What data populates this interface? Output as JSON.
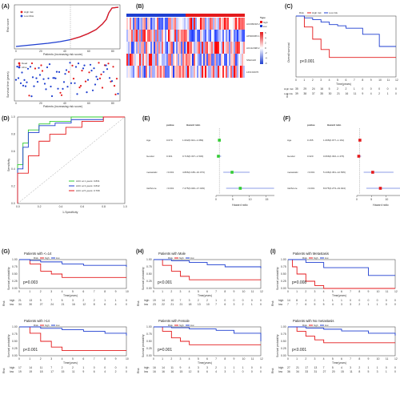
{
  "panel_labels": [
    "(A)",
    "(B)",
    "(C)",
    "(D)",
    "(E)",
    "(F)",
    "(G)",
    "(H)",
    "(I)"
  ],
  "colors": {
    "high": "#e41a1c",
    "low": "#1f3fd0",
    "green": "#33cc33",
    "gray": "#aaaaaa"
  },
  "A": {
    "legend": [
      "High risk",
      "Low Risk"
    ],
    "ylabel1": "Risk score",
    "xlabel": "Patients (increasing risk score)",
    "legend2": [
      "Dead",
      "Alive"
    ],
    "ylabel2": "Survival time (years)",
    "xticks": [
      "0",
      "20",
      "40",
      "60",
      "80"
    ],
    "yticks1": [
      "0",
      "5",
      "10",
      "15",
      "20",
      "25",
      "30"
    ],
    "yticks2": [
      "0",
      "2",
      "4",
      "6",
      "8",
      "10",
      "12"
    ]
  },
  "B": {
    "legend_title": "Type",
    "legend": [
      "high",
      "low"
    ],
    "genes": [
      "AC009318.2",
      "AP000365.1",
      "AC112498.2",
      "SNHG20",
      "LINC01976"
    ],
    "scale": [
      "6",
      "4",
      "2",
      "0",
      "-2",
      "-4",
      "-6"
    ]
  },
  "C": {
    "legend_title": "Risk",
    "legend": [
      "High risk",
      "Low risk"
    ],
    "ylabel": "Overall survival",
    "xlabel": "Time(years)",
    "pvalue": "p<0.001",
    "risk_table_title": "Risk",
    "risk_rows": [
      {
        "label": "High risk",
        "values": [
          "35",
          "29",
          "24",
          "16",
          "5",
          "2",
          "2",
          "1",
          "0",
          "0",
          "0",
          "0",
          "0"
        ]
      },
      {
        "label": "Low risk",
        "values": [
          "39",
          "38",
          "37",
          "35",
          "30",
          "21",
          "16",
          "11",
          "9",
          "4",
          "2",
          "1",
          "0"
        ]
      }
    ],
    "xticks": [
      "0",
      "1",
      "2",
      "3",
      "4",
      "5",
      "6",
      "7",
      "8",
      "9",
      "10",
      "11",
      "12"
    ],
    "yticks": [
      "0.0",
      "0.2",
      "0.4",
      "0.6",
      "0.8",
      "1.0"
    ]
  },
  "D": {
    "ylabel": "Sensitivity",
    "xlabel": "1-Specificity",
    "ticks": [
      "0.0",
      "0.2",
      "0.4",
      "0.6",
      "0.8",
      "1.0"
    ],
    "legend": [
      "AUC at 1 years: 0.831",
      "AUC at 3 years: 0.842",
      "AUC at 5 years: 0.768"
    ]
  },
  "E": {
    "col_headers": [
      "pvalue",
      "Hazard ratio"
    ],
    "rows": [
      {
        "name": "Age",
        "p": "0.670",
        "hr": "1.002(0.921~1.089)",
        "est": 1.002
      },
      {
        "name": "Gender",
        "p": "0.301",
        "hr": "0.716(0.337~1.530)",
        "est": 0.716
      },
      {
        "name": "metastatic",
        "p": "<0.001",
        "hr": "4.806(2.186~10.073)",
        "est": 4.806
      },
      {
        "name": "riskScore",
        "p": "<0.001",
        "hr": "7.275(3.040~17.409)",
        "est": 7.275
      }
    ],
    "xlabel": "Hazard ratio",
    "xticks": [
      "0",
      "5",
      "10",
      "15"
    ]
  },
  "F": {
    "col_headers": [
      "pvalue",
      "Hazard ratio"
    ],
    "rows": [
      {
        "name": "Age",
        "p": "0.155",
        "hr": "1.065(0.977~1.161)",
        "est": 1.065
      },
      {
        "name": "Gender",
        "p": "0.320",
        "hr": "0.666(0.302~1.476)",
        "est": 0.666
      },
      {
        "name": "metastatic",
        "p": "<0.001",
        "hr": "5.446(2.361~12.565)",
        "est": 5.446
      },
      {
        "name": "riskScore",
        "p": "<0.001",
        "hr": "8.075(3.273~19.924)",
        "est": 8.075
      }
    ],
    "xlabel": "Hazard ratio",
    "xticks": [
      "0",
      "5",
      "10",
      "15"
    ]
  },
  "km_common": {
    "legend_title": "Risk",
    "legend": [
      "high",
      "low"
    ],
    "ylabel": "Survival probability",
    "xlabel": "Time(years)",
    "risk_label": "Risk",
    "yticks": [
      "0.00",
      "0.25",
      "0.50",
      "0.75",
      "1.00"
    ]
  },
  "subgroups": [
    {
      "id": "G1",
      "title": "Patients with <=14",
      "pvalue": "p=0.003",
      "xmax": 10,
      "risk_high": [
        "21",
        "13",
        "9",
        "7",
        "5",
        "3",
        "2",
        "2",
        "1",
        "1",
        "0"
      ],
      "risk_low": [
        "34",
        "30",
        "27",
        "24",
        "21",
        "16",
        "12",
        "8",
        "6",
        "4",
        "0"
      ]
    },
    {
      "id": "G2",
      "title": "Patients with >14",
      "pvalue": "p<0.001",
      "xmax": 10,
      "risk_high": [
        "17",
        "14",
        "11",
        "7",
        "2",
        "2",
        "1",
        "0",
        "0",
        "0",
        "0"
      ],
      "risk_low": [
        "19",
        "19",
        "18",
        "17",
        "15",
        "11",
        "9",
        "6",
        "4",
        "2",
        "0"
      ]
    },
    {
      "id": "H1",
      "title": "Patients with Male",
      "pvalue": "p<0.001",
      "xmax": 12,
      "risk_high": [
        "19",
        "14",
        "10",
        "7",
        "3",
        "2",
        "2",
        "1",
        "0",
        "0",
        "0",
        "0",
        "0"
      ],
      "risk_low": [
        "23",
        "22",
        "21",
        "21",
        "18",
        "13",
        "10",
        "7",
        "6",
        "3",
        "2",
        "1",
        "0"
      ]
    },
    {
      "id": "H2",
      "title": "Patients with Female",
      "pvalue": "p=0.001",
      "xmax": 12,
      "risk_high": [
        "16",
        "14",
        "11",
        "9",
        "4",
        "3",
        "3",
        "2",
        "1",
        "1",
        "1",
        "0",
        "0"
      ],
      "risk_low": [
        "16",
        "16",
        "16",
        "15",
        "12",
        "8",
        "6",
        "4",
        "3",
        "1",
        "0",
        "0",
        "0"
      ]
    },
    {
      "id": "I1",
      "title": "Patients with Metastasis",
      "pvalue": "p=0.008",
      "xmax": 12,
      "risk_high": [
        "14",
        "8",
        "4",
        "2",
        "1",
        "1",
        "1",
        "0",
        "0",
        "0",
        "0",
        "0",
        "0"
      ],
      "risk_low": [
        "7",
        "7",
        "6",
        "5",
        "5",
        "4",
        "3",
        "3",
        "2",
        "1",
        "1",
        "0",
        "0"
      ]
    },
    {
      "id": "I2",
      "title": "Patients with No metastasis",
      "pvalue": "p<0.001",
      "xmax": 12,
      "risk_high": [
        "27",
        "21",
        "17",
        "13",
        "7",
        "5",
        "4",
        "3",
        "2",
        "1",
        "1",
        "0",
        "0"
      ],
      "risk_low": [
        "36",
        "34",
        "33",
        "31",
        "27",
        "20",
        "15",
        "11",
        "8",
        "5",
        "3",
        "1",
        "0"
      ]
    }
  ],
  "chart_data": [
    {
      "type": "scatter",
      "panel": "A-top",
      "title": "",
      "xlabel": "Patients (increasing risk score)",
      "ylabel": "Risk score",
      "series": [
        {
          "name": "Low Risk",
          "x": [
            1,
            10,
            20,
            30,
            40,
            45,
            50
          ],
          "y": [
            0.3,
            0.7,
            1.2,
            1.9,
            2.6,
            3.2,
            3.8
          ]
        },
        {
          "name": "High risk",
          "x": [
            51,
            60,
            70,
            80,
            85,
            90
          ],
          "y": [
            4.0,
            5.8,
            8.5,
            13.0,
            18.0,
            30.0
          ]
        }
      ],
      "xlim": [
        0,
        90
      ],
      "ylim": [
        0,
        30
      ]
    },
    {
      "type": "heatmap",
      "panel": "B",
      "rows": [
        "AC009318.2",
        "AP000365.1",
        "AC112498.2",
        "SNHG20",
        "LINC01976"
      ],
      "value_range": [
        -6,
        6
      ]
    },
    {
      "type": "line",
      "panel": "C",
      "xlabel": "Time(years)",
      "ylabel": "Overall survival",
      "xlim": [
        0,
        12
      ],
      "ylim": [
        0,
        1
      ],
      "series": [
        {
          "name": "High risk",
          "x": [
            0,
            1,
            2,
            3,
            4,
            5,
            12
          ],
          "y": [
            1.0,
            0.82,
            0.62,
            0.45,
            0.32,
            0.32,
            0.32
          ]
        },
        {
          "name": "Low risk",
          "x": [
            0,
            1,
            2,
            3,
            4,
            5,
            6,
            8,
            10,
            12
          ],
          "y": [
            1.0,
            0.97,
            0.94,
            0.9,
            0.86,
            0.84,
            0.8,
            0.7,
            0.5,
            0.5
          ]
        }
      ]
    },
    {
      "type": "line",
      "panel": "D",
      "xlabel": "1-Specificity",
      "ylabel": "Sensitivity",
      "xlim": [
        0,
        1
      ],
      "ylim": [
        0,
        1
      ],
      "series": [
        {
          "name": "AUC at 1 years: 0.831",
          "x": [
            0,
            0.05,
            0.1,
            0.2,
            0.3,
            0.5,
            0.7,
            1.0
          ],
          "y": [
            0,
            0.45,
            0.7,
            0.85,
            0.92,
            0.95,
            1.0,
            1.0
          ]
        },
        {
          "name": "AUC at 3 years: 0.842",
          "x": [
            0,
            0.05,
            0.1,
            0.2,
            0.35,
            0.5,
            0.8,
            1.0
          ],
          "y": [
            0,
            0.4,
            0.65,
            0.82,
            0.9,
            0.93,
            0.97,
            1.0
          ]
        },
        {
          "name": "AUC at 5 years: 0.768",
          "x": [
            0,
            0.1,
            0.2,
            0.3,
            0.45,
            0.6,
            0.8,
            1.0
          ],
          "y": [
            0,
            0.35,
            0.55,
            0.72,
            0.8,
            0.88,
            0.95,
            1.0
          ]
        }
      ]
    },
    {
      "type": "bar",
      "panel": "E",
      "title": "",
      "categories": [
        "Age",
        "Gender",
        "metastatic",
        "riskScore"
      ],
      "values": [
        1.002,
        0.716,
        4.806,
        7.275
      ],
      "xlabel": "Hazard ratio",
      "xlim": [
        0,
        17.5
      ]
    },
    {
      "type": "bar",
      "panel": "F",
      "title": "",
      "categories": [
        "Age",
        "Gender",
        "metastatic",
        "riskScore"
      ],
      "values": [
        1.065,
        0.666,
        5.446,
        8.075
      ],
      "xlabel": "Hazard ratio",
      "xlim": [
        0,
        20
      ]
    }
  ]
}
